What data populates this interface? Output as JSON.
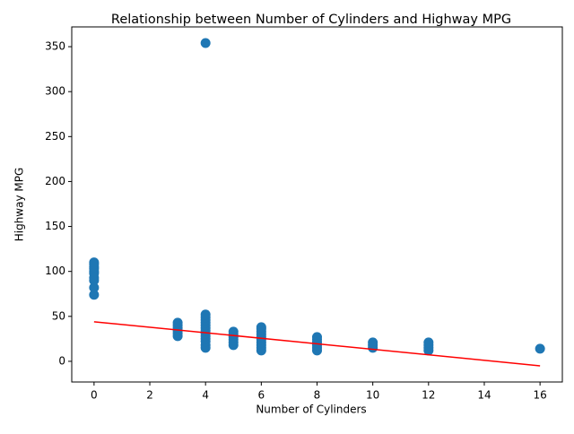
{
  "chart_data": {
    "type": "scatter",
    "title": "Relationship between Number of Cylinders and Highway MPG",
    "x_label": "Number of Cylinders",
    "y_label": "Highway MPG",
    "color": "#1f77b4",
    "x": [
      0,
      0,
      0,
      0,
      0,
      0,
      0,
      0,
      0,
      0,
      3,
      3,
      3,
      3,
      3,
      3,
      4,
      4,
      4,
      4,
      4,
      4,
      4,
      4,
      4,
      4,
      4,
      4,
      4,
      4,
      5,
      5,
      5,
      5,
      5,
      5,
      6,
      6,
      6,
      6,
      6,
      6,
      6,
      6,
      6,
      6,
      8,
      8,
      8,
      8,
      8,
      8,
      10,
      10,
      10,
      12,
      12,
      12,
      12,
      16
    ],
    "values": [
      74,
      82,
      90,
      93,
      98,
      100,
      103,
      105,
      108,
      110,
      28,
      31,
      34,
      37,
      40,
      43,
      354,
      15,
      18,
      22,
      25,
      28,
      31,
      34,
      37,
      40,
      43,
      46,
      49,
      52,
      18,
      21,
      24,
      27,
      30,
      33,
      12,
      15,
      18,
      21,
      24,
      27,
      30,
      33,
      36,
      38,
      12,
      15,
      18,
      21,
      24,
      27,
      15,
      18,
      21,
      12,
      15,
      18,
      21,
      14
    ],
    "trend_line": {
      "x": [
        0,
        16
      ],
      "values": [
        44,
        -5
      ],
      "color": "red"
    },
    "xlim": [
      -0.8,
      16.8
    ],
    "xticks": [
      0,
      2,
      4,
      6,
      8,
      10,
      12,
      14,
      16
    ],
    "ylim": [
      -23,
      372
    ],
    "yticks": [
      0,
      50,
      100,
      150,
      200,
      250,
      300,
      350
    ]
  }
}
